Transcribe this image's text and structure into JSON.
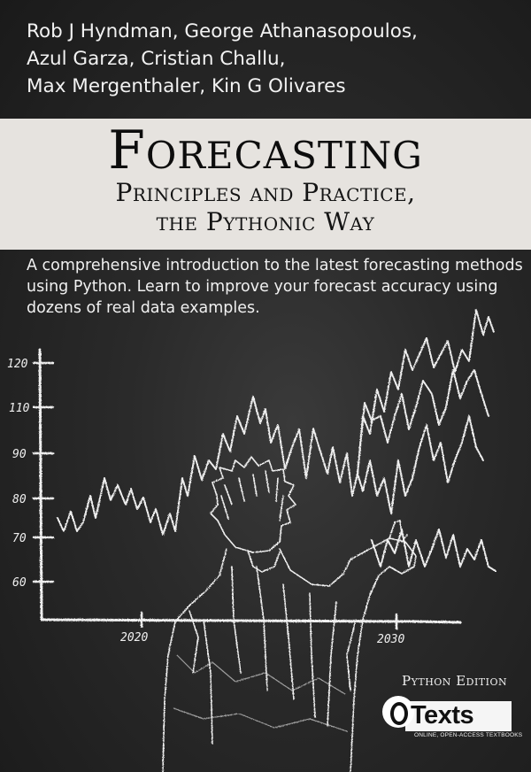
{
  "authors": [
    "Rob J Hyndman, George Athanasopoulos,",
    "Azul Garza, Cristian Challu,",
    "Max Mergenthaler, Kin G Olivares"
  ],
  "title": "Forecasting",
  "subtitle": [
    "Principles and Practice,",
    "the Pythonic Way"
  ],
  "blurb": [
    "A comprehensive introduction to the latest forecasting methods",
    "using Python. Learn to improve your forecast accuracy using",
    "dozens of real data examples."
  ],
  "chalk_chart": {
    "y_ticks": [
      "120",
      "110",
      "90",
      "80",
      "70",
      "60"
    ],
    "x_ticks": [
      "2020",
      "2030"
    ]
  },
  "edition": "Python Edition",
  "publisher": {
    "logo_letter": "O",
    "name": "Texts",
    "tagline": "ONLINE, OPEN-ACCESS TEXTBOOKS"
  },
  "colors": {
    "banner": "#e6e3df",
    "chalkboard": "#2a2a2a",
    "chalk": "#f2f2f2"
  }
}
